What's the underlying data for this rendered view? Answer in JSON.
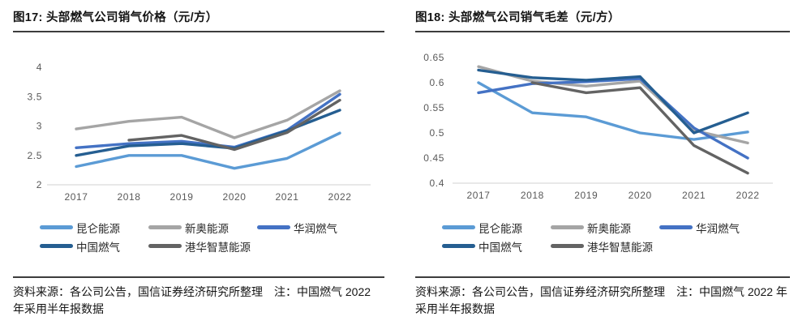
{
  "figures": [
    {
      "title": "图17: 头部燃气公司销气价格（元/方）",
      "source_note": "资料来源：各公司公告，国信证券经济研究所整理　注：中国燃气 2022 年采用半年报数据"
    },
    {
      "title": "图18: 头部燃气公司销气毛差（元/方）",
      "source_note": "资料来源：各公司公告，国信证券经济研究所整理　注：中国燃气 2022 年采用半年报数据"
    }
  ],
  "chart_data": [
    {
      "type": "line",
      "title": "图17: 头部燃气公司销气价格（元/方）",
      "unit": "元/方",
      "x": [
        "2017",
        "2018",
        "2019",
        "2020",
        "2021",
        "2022"
      ],
      "ylim": [
        2,
        4
      ],
      "yticks": [
        2,
        2.5,
        3,
        3.5,
        4
      ],
      "ytick_labels": [
        "2",
        "2.5",
        "3",
        "3.5",
        "4"
      ],
      "grid": false,
      "legend_position": "bottom",
      "series": [
        {
          "name": "昆仑能源",
          "color": "#5B9BD5",
          "values": [
            2.31,
            2.5,
            2.5,
            2.28,
            2.45,
            2.88
          ]
        },
        {
          "name": "新奥能源",
          "color": "#A5A5A5",
          "values": [
            2.95,
            3.08,
            3.15,
            2.8,
            3.1,
            3.6
          ]
        },
        {
          "name": "华润燃气",
          "color": "#4472C4",
          "values": [
            2.63,
            2.7,
            2.74,
            2.64,
            2.93,
            3.54
          ]
        },
        {
          "name": "中国燃气",
          "color": "#255E91",
          "values": [
            2.5,
            2.66,
            2.7,
            2.62,
            2.92,
            3.27
          ]
        },
        {
          "name": "港华智慧能源",
          "color": "#636363",
          "values": [
            null,
            2.76,
            2.84,
            2.6,
            2.89,
            3.44
          ]
        }
      ]
    },
    {
      "type": "line",
      "title": "图18: 头部燃气公司销气毛差（元/方）",
      "unit": "元/方",
      "x": [
        "2017",
        "2018",
        "2019",
        "2020",
        "2021",
        "2022"
      ],
      "ylim": [
        0.4,
        0.65
      ],
      "yticks": [
        0.4,
        0.45,
        0.5,
        0.55,
        0.6,
        0.65
      ],
      "ytick_labels": [
        "0.4",
        "0.45",
        "0.5",
        "0.55",
        "0.6",
        "0.65"
      ],
      "grid": false,
      "legend_position": "bottom",
      "series": [
        {
          "name": "昆仑能源",
          "color": "#5B9BD5",
          "values": [
            0.6,
            0.54,
            0.532,
            0.5,
            0.487,
            0.502
          ]
        },
        {
          "name": "新奥能源",
          "color": "#A5A5A5",
          "values": [
            0.632,
            0.603,
            0.593,
            0.603,
            0.505,
            0.48
          ]
        },
        {
          "name": "华润燃气",
          "color": "#4472C4",
          "values": [
            0.58,
            0.598,
            0.602,
            0.608,
            0.51,
            0.45
          ]
        },
        {
          "name": "中国燃气",
          "color": "#255E91",
          "values": [
            0.625,
            0.61,
            0.605,
            0.612,
            0.5,
            0.54
          ]
        },
        {
          "name": "港华智慧能源",
          "color": "#636363",
          "values": [
            null,
            0.6,
            0.58,
            0.59,
            0.475,
            0.42
          ]
        }
      ]
    }
  ]
}
